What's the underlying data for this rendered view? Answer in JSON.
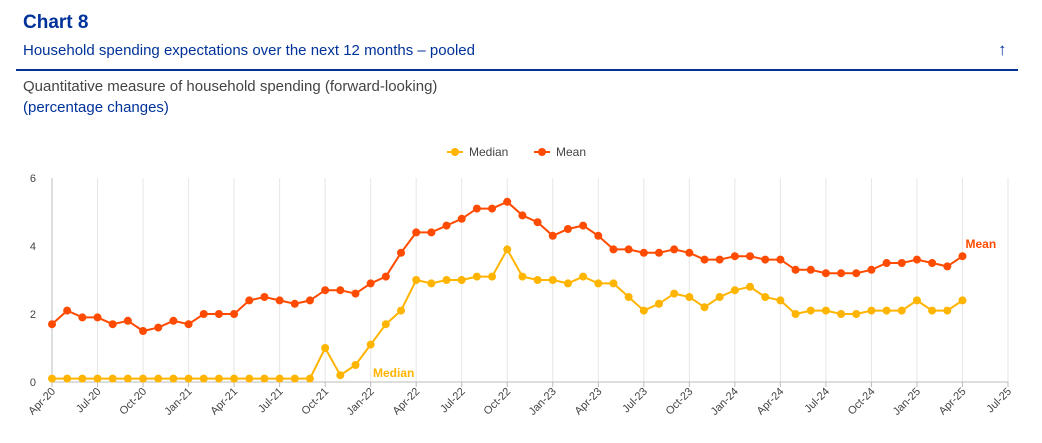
{
  "header": {
    "title": "Chart 8",
    "subtitle": "Household spending expectations over the next 12 months – pooled",
    "description": "Quantitative measure of household spending (forward-looking)",
    "units": "(percentage changes)",
    "up_arrow_icon": "arrow-up-icon"
  },
  "chart_data": {
    "type": "line",
    "legend_position": "top-center",
    "grid": "vertical",
    "ylim": [
      0,
      6
    ],
    "yticks": [
      0,
      2,
      4,
      6
    ],
    "x_start": "Apr-20",
    "x_tick_labels": [
      "Apr-20",
      "Jul-20",
      "Oct-20",
      "Jan-21",
      "Apr-21",
      "Jul-21",
      "Oct-21",
      "Jan-22",
      "Apr-22",
      "Jul-22",
      "Oct-22",
      "Jan-23",
      "Apr-23",
      "Jul-23",
      "Oct-23",
      "Jan-24",
      "Apr-24",
      "Jul-24",
      "Oct-24",
      "Jan-25",
      "Apr-25",
      "Jul-25"
    ],
    "series": [
      {
        "name": "Median",
        "color": "#ffb400",
        "end_label": "Median",
        "values": [
          0.1,
          0.1,
          0.1,
          0.1,
          0.1,
          0.1,
          0.1,
          0.1,
          0.1,
          0.1,
          0.1,
          0.1,
          0.1,
          0.1,
          0.1,
          0.1,
          0.1,
          0.1,
          1.0,
          0.2,
          0.5,
          1.1,
          1.7,
          2.1,
          3.0,
          2.9,
          3.0,
          3.0,
          3.1,
          3.1,
          3.9,
          3.1,
          3.0,
          3.0,
          2.9,
          3.1,
          2.9,
          2.9,
          2.5,
          2.1,
          2.3,
          2.6,
          2.5,
          2.2,
          2.5,
          2.7,
          2.8,
          2.5,
          2.4,
          2.0,
          2.1,
          2.1,
          2.0,
          2.0,
          2.1,
          2.1,
          2.1,
          2.4,
          2.1,
          2.1,
          2.4
        ]
      },
      {
        "name": "Mean",
        "color": "#ff4b00",
        "end_label": "Mean",
        "values": [
          1.7,
          2.1,
          1.9,
          1.9,
          1.7,
          1.8,
          1.5,
          1.6,
          1.8,
          1.7,
          2.0,
          2.0,
          2.0,
          2.4,
          2.5,
          2.4,
          2.3,
          2.4,
          2.7,
          2.7,
          2.6,
          2.9,
          3.1,
          3.8,
          4.4,
          4.4,
          4.6,
          4.8,
          5.1,
          5.1,
          5.3,
          4.9,
          4.7,
          4.3,
          4.5,
          4.6,
          4.3,
          3.9,
          3.9,
          3.8,
          3.8,
          3.9,
          3.8,
          3.6,
          3.6,
          3.7,
          3.7,
          3.6,
          3.6,
          3.3,
          3.3,
          3.2,
          3.2,
          3.2,
          3.3,
          3.5,
          3.5,
          3.6,
          3.5,
          3.4,
          3.7
        ]
      }
    ]
  }
}
